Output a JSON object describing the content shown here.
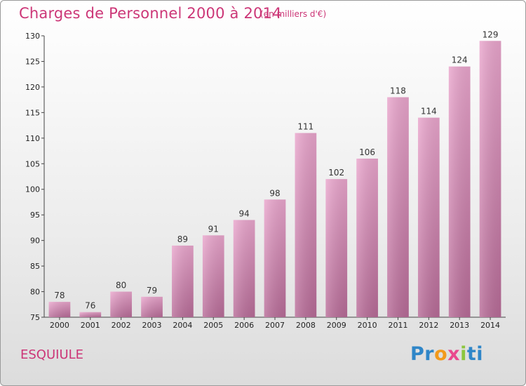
{
  "chart_data": {
    "type": "bar",
    "title": "Charges de Personnel 2000 à 2014",
    "subtitle": "(en milliers d'€)",
    "categories": [
      "2000",
      "2001",
      "2002",
      "2003",
      "2004",
      "2005",
      "2006",
      "2007",
      "2008",
      "2009",
      "2010",
      "2011",
      "2012",
      "2013",
      "2014"
    ],
    "values": [
      78,
      76,
      80,
      79,
      89,
      91,
      94,
      98,
      111,
      102,
      106,
      118,
      114,
      124,
      129
    ],
    "ylim": [
      75,
      130
    ],
    "yticks": [
      75,
      80,
      85,
      90,
      95,
      100,
      105,
      110,
      115,
      120,
      125,
      130
    ],
    "grid": false,
    "bar_color": "#d98ab4"
  },
  "footer": {
    "commune": "ESQUIULE",
    "logo_parts": [
      "Pr",
      "o",
      "x",
      "i",
      "ti"
    ]
  }
}
